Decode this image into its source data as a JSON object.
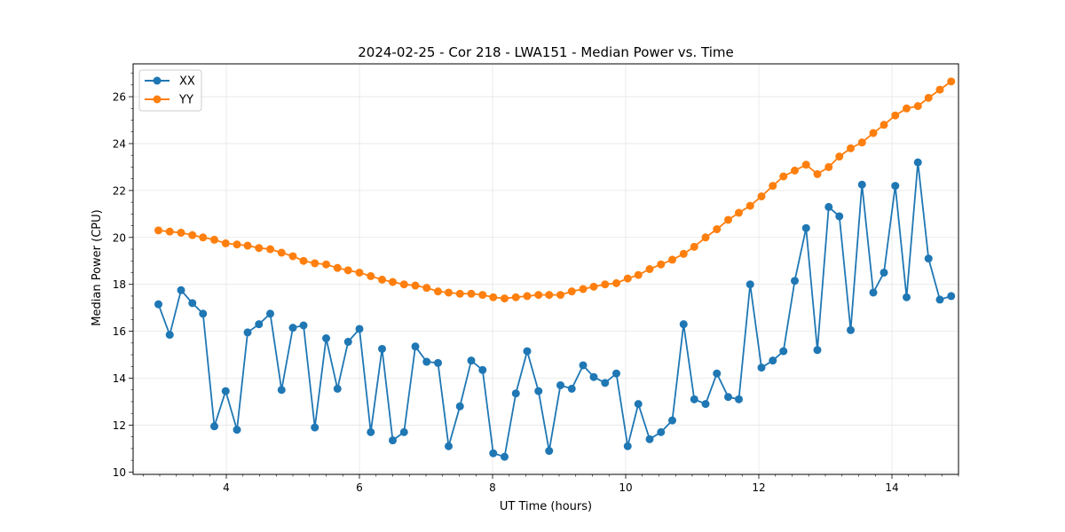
{
  "chart_data": {
    "type": "line",
    "title": "2024-02-25 - Cor 218 - LWA151 - Median Power vs. Time",
    "xlabel": "UT Time (hours)",
    "ylabel": "Median Power (CPU)",
    "xlim": [
      2.6,
      15.0
    ],
    "ylim": [
      9.9,
      27.4
    ],
    "xticks": [
      4,
      6,
      8,
      10,
      12,
      14
    ],
    "yticks": [
      10,
      12,
      14,
      16,
      18,
      20,
      22,
      24,
      26
    ],
    "grid": true,
    "legend_position": "top-left",
    "x": [
      2.98,
      3.15,
      3.32,
      3.49,
      3.65,
      3.82,
      3.99,
      4.16,
      4.32,
      4.49,
      4.66,
      4.83,
      5.0,
      5.16,
      5.33,
      5.5,
      5.67,
      5.83,
      6.0,
      6.17,
      6.34,
      6.5,
      6.67,
      6.84,
      7.01,
      7.18,
      7.34,
      7.51,
      7.68,
      7.85,
      8.01,
      8.18,
      8.35,
      8.52,
      8.69,
      8.85,
      9.02,
      9.19,
      9.36,
      9.52,
      9.69,
      9.86,
      10.03,
      10.19,
      10.36,
      10.53,
      10.7,
      10.87,
      11.03,
      11.2,
      11.37,
      11.54,
      11.7,
      11.87,
      12.04,
      12.21,
      12.37,
      12.54,
      12.71,
      12.88,
      13.05,
      13.21,
      13.38,
      13.55,
      13.72,
      13.88,
      14.05,
      14.22,
      14.39,
      14.55,
      14.72,
      14.89
    ],
    "series": [
      {
        "name": "XX",
        "color": "#1f77b4",
        "values": [
          17.15,
          15.85,
          17.75,
          17.2,
          16.75,
          11.95,
          13.45,
          11.8,
          15.95,
          16.3,
          16.75,
          13.5,
          16.15,
          16.25,
          11.9,
          15.7,
          13.55,
          15.55,
          16.1,
          11.7,
          15.25,
          11.35,
          11.7,
          15.35,
          14.7,
          14.65,
          11.1,
          12.8,
          14.75,
          14.35,
          10.8,
          10.65,
          13.35,
          15.15,
          13.45,
          10.9,
          13.7,
          13.55,
          14.55,
          14.05,
          13.8,
          14.2,
          11.1,
          12.9,
          11.4,
          11.7,
          12.2,
          16.3,
          13.1,
          12.9,
          14.2,
          13.2,
          13.1,
          18.0,
          14.45,
          14.75,
          15.15,
          18.15,
          20.4,
          15.2,
          21.3,
          20.9,
          16.05,
          22.25,
          17.65,
          18.5,
          22.2,
          17.45,
          23.2,
          19.1,
          17.35,
          17.5
        ]
      },
      {
        "name": "YY",
        "color": "#ff7f0e",
        "values": [
          20.3,
          20.25,
          20.2,
          20.1,
          20.0,
          19.9,
          19.75,
          19.7,
          19.65,
          19.55,
          19.5,
          19.35,
          19.2,
          19.0,
          18.9,
          18.85,
          18.7,
          18.6,
          18.5,
          18.35,
          18.2,
          18.1,
          18.0,
          17.95,
          17.85,
          17.7,
          17.65,
          17.6,
          17.6,
          17.55,
          17.45,
          17.4,
          17.45,
          17.5,
          17.55,
          17.55,
          17.55,
          17.7,
          17.8,
          17.9,
          18.0,
          18.05,
          18.25,
          18.4,
          18.65,
          18.85,
          19.05,
          19.3,
          19.6,
          20.0,
          20.35,
          20.75,
          21.05,
          21.35,
          21.75,
          22.2,
          22.6,
          22.85,
          23.1,
          22.7,
          23.0,
          23.45,
          23.8,
          24.05,
          24.45,
          24.8,
          25.2,
          25.5,
          25.6,
          25.95,
          26.3,
          26.65
        ]
      }
    ]
  }
}
